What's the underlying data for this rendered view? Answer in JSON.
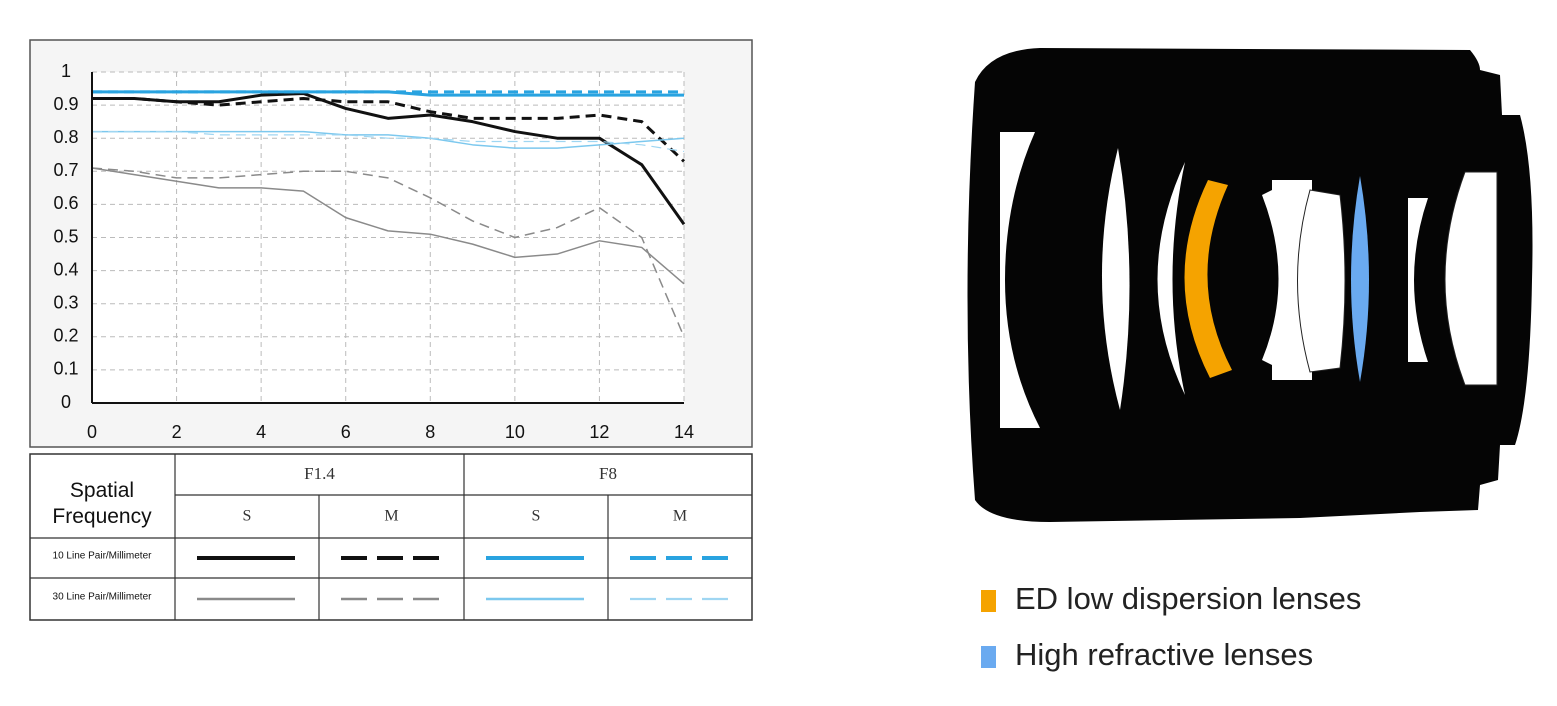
{
  "chart_data": {
    "type": "line",
    "x": [
      0,
      1,
      2,
      3,
      4,
      5,
      6,
      7,
      8,
      9,
      10,
      11,
      12,
      13,
      14
    ],
    "xlim": [
      0,
      14
    ],
    "xticks": [
      0,
      2,
      4,
      6,
      8,
      10,
      12,
      14
    ],
    "ylim": [
      0,
      1
    ],
    "yticks": [
      0,
      0.1,
      0.2,
      0.3,
      0.4,
      0.5,
      0.6,
      0.7,
      0.8,
      0.9,
      1
    ],
    "grid": true,
    "series": [
      {
        "color": "#111111",
        "dashed": false,
        "line_width": 3,
        "values": [
          0.92,
          0.92,
          0.91,
          0.91,
          0.93,
          0.935,
          0.89,
          0.86,
          0.87,
          0.85,
          0.82,
          0.8,
          0.8,
          0.72,
          0.54
        ]
      },
      {
        "color": "#111111",
        "dashed": true,
        "line_width": 3,
        "values": [
          0.92,
          0.92,
          0.91,
          0.9,
          0.91,
          0.92,
          0.91,
          0.91,
          0.88,
          0.86,
          0.86,
          0.86,
          0.87,
          0.85,
          0.73
        ]
      },
      {
        "color": "#29a3e0",
        "dashed": false,
        "line_width": 3,
        "values": [
          0.94,
          0.94,
          0.94,
          0.94,
          0.94,
          0.94,
          0.94,
          0.94,
          0.93,
          0.93,
          0.93,
          0.93,
          0.93,
          0.93,
          0.93
        ]
      },
      {
        "color": "#29a3e0",
        "dashed": true,
        "line_width": 3,
        "values": [
          0.94,
          0.94,
          0.94,
          0.94,
          0.94,
          0.94,
          0.94,
          0.94,
          0.94,
          0.94,
          0.94,
          0.94,
          0.94,
          0.94,
          0.94
        ]
      },
      {
        "color": "#8a8a8a",
        "dashed": false,
        "line_width": 1.5,
        "values": [
          0.71,
          0.69,
          0.67,
          0.65,
          0.65,
          0.64,
          0.56,
          0.52,
          0.51,
          0.48,
          0.44,
          0.45,
          0.49,
          0.47,
          0.36
        ]
      },
      {
        "color": "#8a8a8a",
        "dashed": true,
        "line_width": 1.5,
        "values": [
          0.71,
          0.7,
          0.68,
          0.68,
          0.69,
          0.7,
          0.7,
          0.68,
          0.62,
          0.55,
          0.5,
          0.53,
          0.59,
          0.5,
          0.2
        ]
      },
      {
        "color": "#7cc8ee",
        "dashed": false,
        "line_width": 1.5,
        "values": [
          0.82,
          0.82,
          0.82,
          0.82,
          0.82,
          0.82,
          0.81,
          0.81,
          0.8,
          0.78,
          0.77,
          0.77,
          0.78,
          0.79,
          0.8
        ]
      },
      {
        "color": "#9fd6f2",
        "dashed": true,
        "line_width": 1.2,
        "values": [
          0.82,
          0.82,
          0.82,
          0.81,
          0.81,
          0.81,
          0.81,
          0.8,
          0.8,
          0.79,
          0.79,
          0.79,
          0.79,
          0.78,
          0.76
        ]
      }
    ],
    "legend_table": {
      "header": "Spatial Frequency",
      "apertures": [
        "F1.4",
        "F8"
      ],
      "directions": [
        "S",
        "M",
        "S",
        "M"
      ],
      "rows": [
        "10 Line Pair/Millimeter",
        "30 Line Pair/Millimeter"
      ]
    }
  },
  "lens_diagram": {
    "legend": [
      {
        "label": "ED low dispersion lenses",
        "color": "#f5a300"
      },
      {
        "label": "High refractive lenses",
        "color": "#6aaaf0"
      }
    ]
  }
}
